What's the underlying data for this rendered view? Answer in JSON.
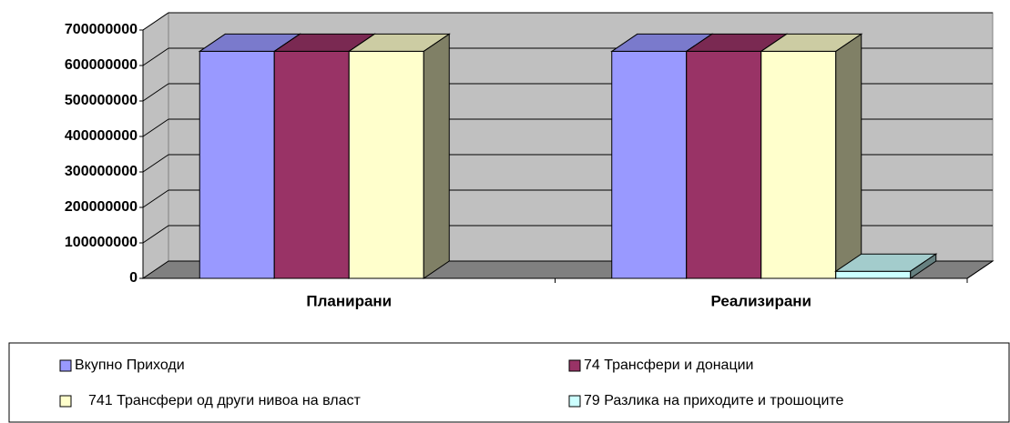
{
  "chart_data": {
    "type": "bar3d",
    "categories": [
      "Планирани",
      "Реализирани"
    ],
    "series": [
      {
        "name": "Вкупно Приходи",
        "color": "#9999ff",
        "values": [
          640000000,
          640000000
        ]
      },
      {
        "name": "74 Трансфери и донации",
        "color": "#993366",
        "values": [
          640000000,
          640000000
        ]
      },
      {
        "name": "741 Трансфери од други нивоа на власт",
        "color": "#ffffcc",
        "values": [
          640000000,
          640000000
        ]
      },
      {
        "name": "79 Разлика на приходите и трошоците",
        "color": "#ccffff",
        "values": [
          0,
          20000000
        ]
      }
    ],
    "ylim": [
      0,
      700000000
    ],
    "yticks": [
      0,
      100000000,
      200000000,
      300000000,
      400000000,
      500000000,
      600000000,
      700000000
    ],
    "grid": true,
    "legend": "bottom"
  }
}
